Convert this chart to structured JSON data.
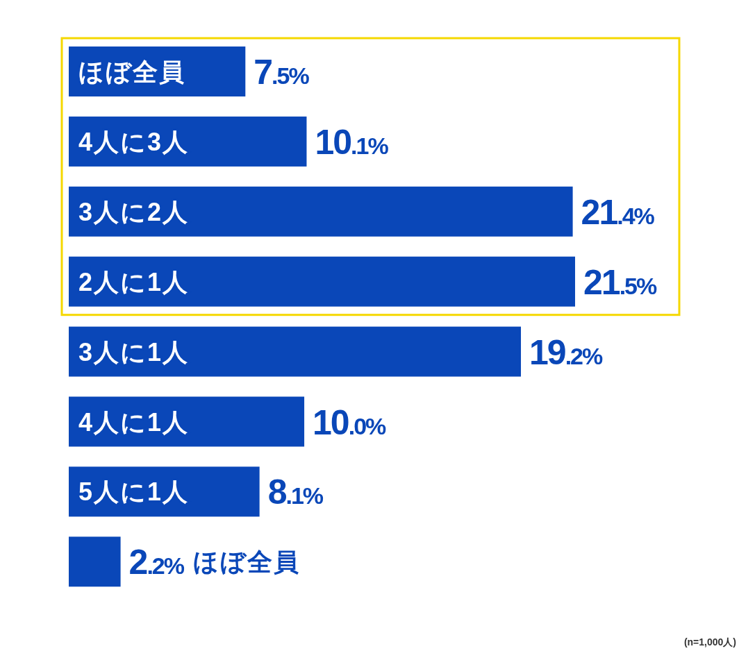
{
  "chart_data": {
    "type": "bar",
    "orientation": "horizontal",
    "categories": [
      "ほぼ全員",
      "4人に3人",
      "3人に2人",
      "2人に1人",
      "3人に1人",
      "4人に1人",
      "5人に1人",
      "ほぼ全員"
    ],
    "values": [
      7.5,
      10.1,
      21.4,
      21.5,
      19.2,
      10.0,
      8.1,
      2.2
    ],
    "value_labels": [
      "7.5%",
      "10.1%",
      "21.4%",
      "21.5%",
      "19.2%",
      "10.0%",
      "8.1%",
      "2.2%"
    ],
    "color": "#0a47b8",
    "annotations": [
      "(n=1,000人)"
    ]
  }
}
